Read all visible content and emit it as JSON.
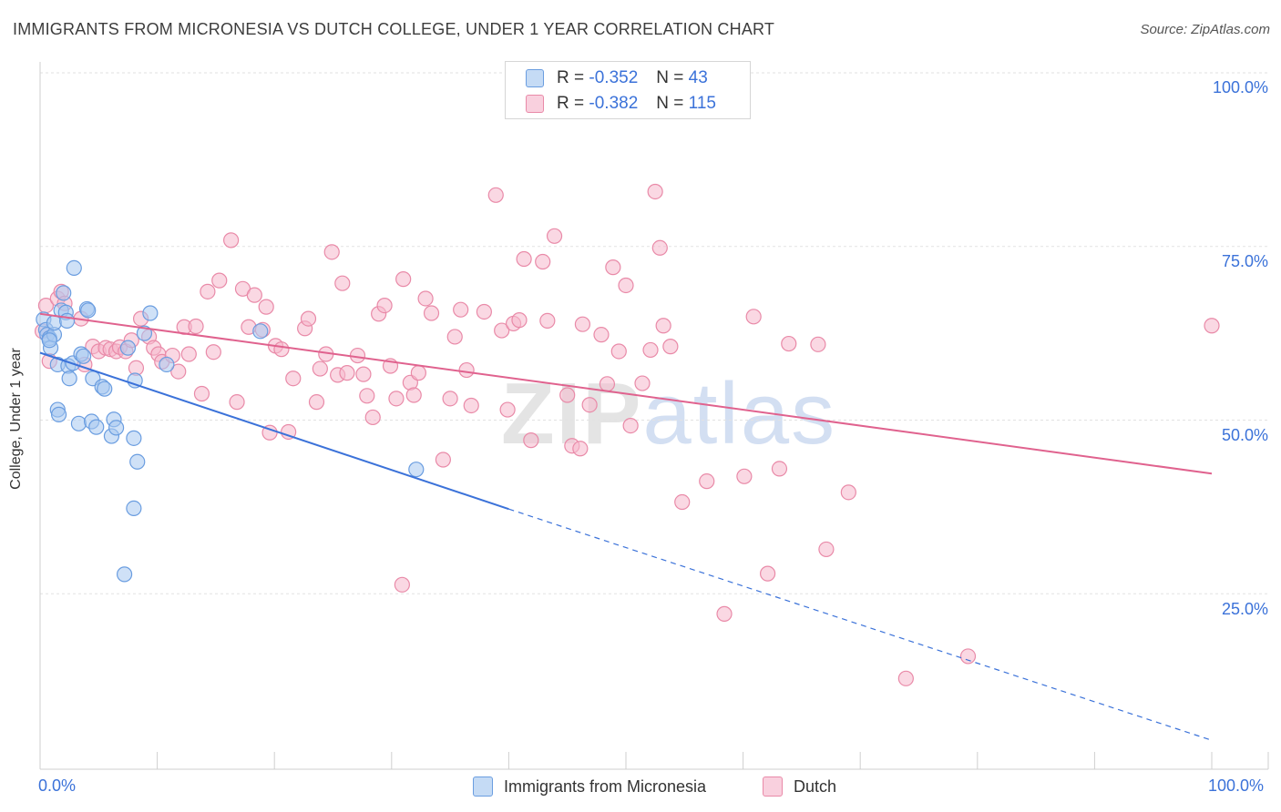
{
  "header": {
    "title": "IMMIGRANTS FROM MICRONESIA VS DUTCH COLLEGE, UNDER 1 YEAR CORRELATION CHART",
    "source": "Source: ZipAtlas.com"
  },
  "legend": {
    "series1": {
      "r_label": "R = ",
      "r_value": "-0.352",
      "n_label": "N = ",
      "n_value": "43"
    },
    "series2": {
      "r_label": "R = ",
      "r_value": "-0.382",
      "n_label": "N = ",
      "n_value": "115"
    }
  },
  "bottom_legend": {
    "series1": "Immigrants from Micronesia",
    "series2": "Dutch"
  },
  "watermark": {
    "zip": "ZIP",
    "atlas": "atlas"
  },
  "colors": {
    "blue_fill": "#a8c8f0",
    "blue_stroke": "#6a9de0",
    "blue_line": "#3b72d9",
    "pink_fill": "#f5b8cc",
    "pink_stroke": "#e98aa8",
    "pink_line": "#e0628e",
    "tick_text": "#3b72d9"
  },
  "chart_data": {
    "type": "scatter",
    "title": "IMMIGRANTS FROM MICRONESIA VS DUTCH COLLEGE, UNDER 1 YEAR CORRELATION CHART",
    "xlabel": "",
    "ylabel": "College, Under 1 year",
    "xlim": [
      0,
      100
    ],
    "ylim": [
      0,
      100
    ],
    "x_tick_labels": [
      "0.0%",
      "100.0%"
    ],
    "y_ticks": [
      25,
      50,
      75,
      100
    ],
    "y_tick_labels": [
      "25.0%",
      "50.0%",
      "75.0%",
      "100.0%"
    ],
    "grid": true,
    "series": [
      {
        "name": "Immigrants from Micronesia",
        "color": "blue",
        "trend": {
          "x0": 0,
          "y0": 59.7,
          "x1": 40,
          "y1": 37.2,
          "dashed_to_x": 100,
          "dashed_to_y": 3.9
        },
        "points": [
          [
            0.3,
            64.5
          ],
          [
            0.5,
            63
          ],
          [
            0.6,
            62.3
          ],
          [
            0.8,
            61.8
          ],
          [
            0.9,
            60.4
          ],
          [
            1.2,
            62.3
          ],
          [
            1.2,
            64
          ],
          [
            1.5,
            58
          ],
          [
            1.5,
            51.5
          ],
          [
            1.6,
            50.8
          ],
          [
            1.8,
            65.8
          ],
          [
            2.0,
            68.3
          ],
          [
            2.2,
            65.5
          ],
          [
            2.3,
            64.3
          ],
          [
            2.4,
            57.8
          ],
          [
            2.5,
            56
          ],
          [
            2.8,
            58.2
          ],
          [
            2.9,
            71.9
          ],
          [
            3.3,
            49.5
          ],
          [
            3.5,
            59.5
          ],
          [
            3.7,
            59.2
          ],
          [
            4.0,
            66
          ],
          [
            4.1,
            65.8
          ],
          [
            4.4,
            49.8
          ],
          [
            4.5,
            56
          ],
          [
            4.8,
            49
          ],
          [
            5.3,
            54.8
          ],
          [
            5.5,
            54.5
          ],
          [
            6.1,
            47.7
          ],
          [
            6.3,
            50.1
          ],
          [
            6.5,
            48.9
          ],
          [
            7.2,
            27.8
          ],
          [
            7.5,
            60.4
          ],
          [
            8.0,
            37.3
          ],
          [
            8.0,
            47.4
          ],
          [
            8.1,
            55.7
          ],
          [
            8.3,
            44
          ],
          [
            8.9,
            62.5
          ],
          [
            9.4,
            65.4
          ],
          [
            10.8,
            58
          ],
          [
            18.8,
            62.8
          ],
          [
            32.1,
            42.9
          ],
          [
            0.8,
            61.5
          ]
        ]
      },
      {
        "name": "Dutch",
        "color": "pink",
        "trend": {
          "x0": 0,
          "y0": 65.3,
          "x1": 100,
          "y1": 42.3
        },
        "points": [
          [
            0.5,
            66.5
          ],
          [
            0.8,
            58.5
          ],
          [
            1.5,
            67.5
          ],
          [
            1.8,
            68.5
          ],
          [
            2.1,
            66.8
          ],
          [
            3.5,
            64.6
          ],
          [
            3.8,
            58
          ],
          [
            4.5,
            60.6
          ],
          [
            5.0,
            59.9
          ],
          [
            5.6,
            60.4
          ],
          [
            6.0,
            60.2
          ],
          [
            6.5,
            59.9
          ],
          [
            6.8,
            60.5
          ],
          [
            7.3,
            59.9
          ],
          [
            7.8,
            61.5
          ],
          [
            8.2,
            57.5
          ],
          [
            8.6,
            64.6
          ],
          [
            9.3,
            62
          ],
          [
            9.7,
            60.4
          ],
          [
            10.1,
            59.5
          ],
          [
            10.4,
            58.4
          ],
          [
            11.3,
            59.3
          ],
          [
            11.8,
            57
          ],
          [
            12.3,
            63.4
          ],
          [
            12.7,
            59.5
          ],
          [
            13.3,
            63.5
          ],
          [
            13.8,
            53.8
          ],
          [
            14.3,
            68.5
          ],
          [
            14.8,
            59.8
          ],
          [
            15.3,
            70.1
          ],
          [
            16.3,
            75.9
          ],
          [
            16.8,
            52.6
          ],
          [
            17.3,
            68.9
          ],
          [
            17.8,
            63.4
          ],
          [
            18.3,
            68
          ],
          [
            19.0,
            63
          ],
          [
            19.3,
            66.3
          ],
          [
            19.6,
            48.2
          ],
          [
            20.1,
            60.7
          ],
          [
            20.6,
            60.2
          ],
          [
            21.2,
            48.3
          ],
          [
            21.6,
            56
          ],
          [
            22.6,
            63.2
          ],
          [
            22.9,
            64.6
          ],
          [
            23.6,
            52.6
          ],
          [
            23.9,
            57.4
          ],
          [
            24.4,
            59.5
          ],
          [
            24.9,
            74.2
          ],
          [
            25.4,
            56.5
          ],
          [
            25.8,
            69.7
          ],
          [
            26.2,
            56.8
          ],
          [
            27.1,
            59.3
          ],
          [
            27.6,
            56.6
          ],
          [
            27.9,
            53.5
          ],
          [
            28.4,
            50.4
          ],
          [
            28.9,
            65.3
          ],
          [
            29.4,
            66.5
          ],
          [
            29.9,
            57.8
          ],
          [
            30.4,
            53.1
          ],
          [
            30.9,
            26.3
          ],
          [
            31.0,
            70.3
          ],
          [
            31.6,
            55.4
          ],
          [
            31.9,
            53.6
          ],
          [
            32.3,
            56.8
          ],
          [
            32.9,
            67.5
          ],
          [
            33.4,
            65.4
          ],
          [
            34.4,
            44.3
          ],
          [
            35.0,
            53.1
          ],
          [
            35.4,
            62
          ],
          [
            35.9,
            65.9
          ],
          [
            36.4,
            57.2
          ],
          [
            36.8,
            52.1
          ],
          [
            37.9,
            65.6
          ],
          [
            38.9,
            82.4
          ],
          [
            39.4,
            62.9
          ],
          [
            39.9,
            51.5
          ],
          [
            40.4,
            63.9
          ],
          [
            40.9,
            64.4
          ],
          [
            41.3,
            73.2
          ],
          [
            41.9,
            47.1
          ],
          [
            42.9,
            72.8
          ],
          [
            43.3,
            64.3
          ],
          [
            43.9,
            76.5
          ],
          [
            45.0,
            53.6
          ],
          [
            45.4,
            46.3
          ],
          [
            46.1,
            45.9
          ],
          [
            46.3,
            63.8
          ],
          [
            46.9,
            52.2
          ],
          [
            47.9,
            62.3
          ],
          [
            48.4,
            55.2
          ],
          [
            48.9,
            72
          ],
          [
            49.4,
            59.9
          ],
          [
            50.0,
            69.4
          ],
          [
            50.4,
            49.2
          ],
          [
            51.4,
            55.3
          ],
          [
            52.1,
            60.1
          ],
          [
            52.5,
            82.9
          ],
          [
            52.9,
            74.8
          ],
          [
            53.2,
            63.6
          ],
          [
            53.8,
            60.6
          ],
          [
            54.8,
            38.2
          ],
          [
            56.9,
            41.2
          ],
          [
            58.4,
            22.1
          ],
          [
            60.1,
            41.9
          ],
          [
            60.9,
            64.9
          ],
          [
            62.1,
            27.9
          ],
          [
            63.1,
            43
          ],
          [
            63.9,
            61
          ],
          [
            66.4,
            60.9
          ],
          [
            67.1,
            31.4
          ],
          [
            69.0,
            39.6
          ],
          [
            73.9,
            12.8
          ],
          [
            79.2,
            16
          ],
          [
            100.0,
            63.6
          ],
          [
            0.2,
            62.8
          ]
        ]
      }
    ]
  }
}
